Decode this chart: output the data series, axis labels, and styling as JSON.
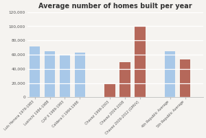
{
  "title": "Average number of homes built per year",
  "categories": [
    "Luis Herrera 1979-1983",
    "Lusinchi 1984-1988",
    "CAP II 1989-1993",
    "Caldera II 1994-1998",
    "Chavez 1999-2003",
    "Chavez 2004-2008",
    "Chavez 2009-2012 (GMVV)",
    "4th Republic Average",
    "5th Republic Average"
  ],
  "values": [
    72000,
    65000,
    60000,
    63000,
    20000,
    49000,
    100000,
    65000,
    53000
  ],
  "colors": [
    "#a8c8e8",
    "#a8c8e8",
    "#a8c8e8",
    "#a8c8e8",
    "#b5685a",
    "#b5685a",
    "#b5685a",
    "#a8c8e8",
    "#b5685a"
  ],
  "positions": [
    0,
    1,
    2,
    3,
    5,
    6,
    7,
    9,
    10
  ],
  "xlim": [
    -0.5,
    11.2
  ],
  "ylim": [
    0,
    120000
  ],
  "yticks": [
    0,
    20000,
    40000,
    60000,
    80000,
    100000,
    120000
  ],
  "ytick_labels": [
    "0",
    "20,000",
    "40,000",
    "60,000",
    "80,000",
    "100,000",
    "120,000"
  ],
  "background_color": "#f5f3f0",
  "plot_bg_color": "#f5f3f0",
  "grid_color": "#ffffff",
  "title_fontsize": 7.0,
  "bar_width": 0.7,
  "tick_fontsize": 4.2,
  "xtick_fontsize": 3.6
}
